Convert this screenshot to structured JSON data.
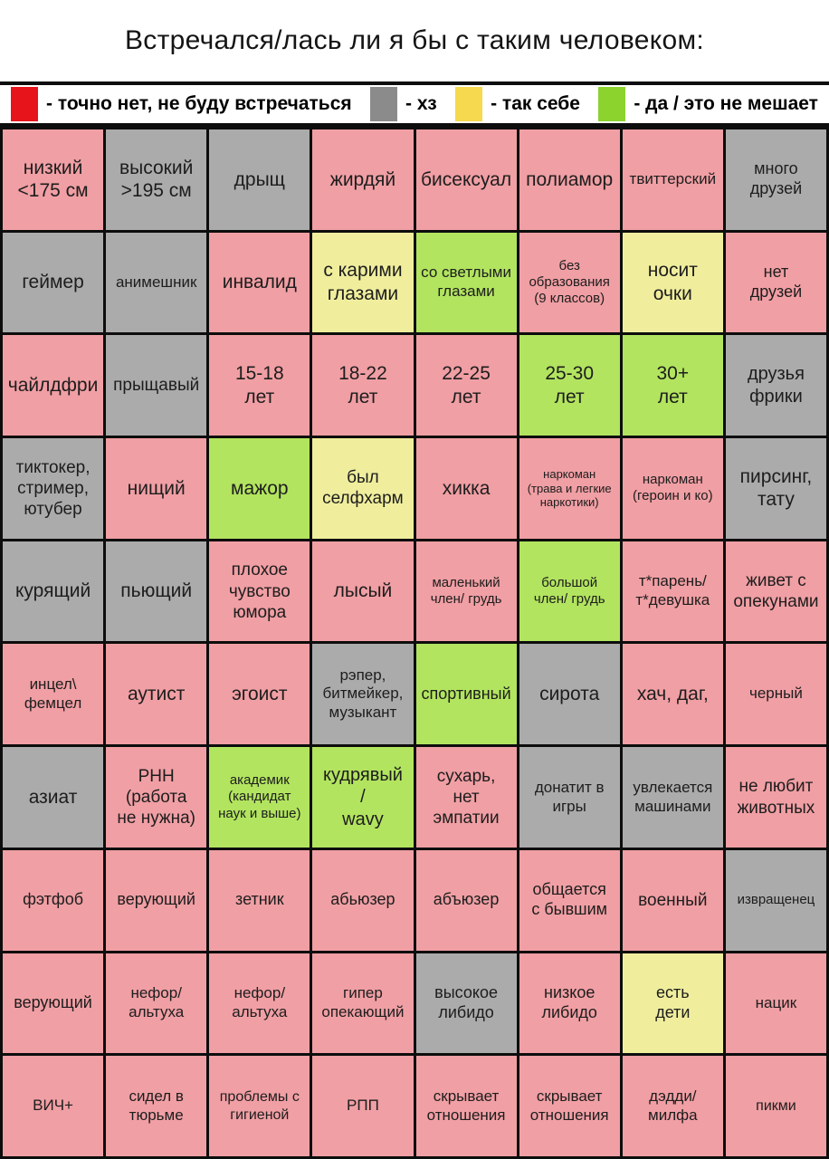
{
  "title": "Встречался/лась ли я бы с таким человеком:",
  "colors": {
    "cell": {
      "no": "#f09fa4",
      "hz": "#ababab",
      "soso": "#f0ee9d",
      "yes": "#b2e45f"
    },
    "legend": {
      "no": "#e8141b",
      "hz": "#8b8b8b",
      "soso": "#f6d94e",
      "yes": "#8cd32e"
    },
    "gridline": "#0d0d0d"
  },
  "chart_data": {
    "type": "table",
    "title": "Встречался/лась ли я бы с таким человеком:",
    "columns": 8,
    "rows_count": 10,
    "legend": [
      {
        "key": "no",
        "label": "- точно нет, не буду встречаться"
      },
      {
        "key": "hz",
        "label": "- хз"
      },
      {
        "key": "soso",
        "label": "- так себе"
      },
      {
        "key": "yes",
        "label": "- да / это не мешает"
      }
    ],
    "rows": [
      [
        {
          "text": "низкий\n<175 см",
          "status": "no",
          "fs": 21
        },
        {
          "text": "высокий\n>195 см",
          "status": "hz",
          "fs": 21
        },
        {
          "text": "дрыщ",
          "status": "hz",
          "fs": 21
        },
        {
          "text": "жирдяй",
          "status": "no",
          "fs": 21
        },
        {
          "text": "бисексуал",
          "status": "no",
          "fs": 21
        },
        {
          "text": "полиамор",
          "status": "no",
          "fs": 21
        },
        {
          "text": "твиттерский",
          "status": "no",
          "fs": 17
        },
        {
          "text": "много\nдрузей",
          "status": "hz",
          "fs": 18
        }
      ],
      [
        {
          "text": "геймер",
          "status": "hz",
          "fs": 21
        },
        {
          "text": "анимешник",
          "status": "hz",
          "fs": 17
        },
        {
          "text": "инвалид",
          "status": "no",
          "fs": 21
        },
        {
          "text": "с карими\nглазами",
          "status": "soso",
          "fs": 21
        },
        {
          "text": "со светлыми\nглазами",
          "status": "yes",
          "fs": 17
        },
        {
          "text": "без\nобразования\n(9 классов)",
          "status": "no",
          "fs": 15
        },
        {
          "text": "носит\nочки",
          "status": "soso",
          "fs": 21
        },
        {
          "text": "нет\nдрузей",
          "status": "no",
          "fs": 18
        }
      ],
      [
        {
          "text": "чайлдфри",
          "status": "no",
          "fs": 21
        },
        {
          "text": "прыщавый",
          "status": "hz",
          "fs": 19
        },
        {
          "text": "15-18\nлет",
          "status": "no",
          "fs": 21
        },
        {
          "text": "18-22\nлет",
          "status": "no",
          "fs": 21
        },
        {
          "text": "22-25\nлет",
          "status": "no",
          "fs": 21
        },
        {
          "text": "25-30\nлет",
          "status": "yes",
          "fs": 21
        },
        {
          "text": "30+\nлет",
          "status": "yes",
          "fs": 21
        },
        {
          "text": "друзья\nфрики",
          "status": "hz",
          "fs": 20
        }
      ],
      [
        {
          "text": "тиктокер,\nстример,\nютубер",
          "status": "hz",
          "fs": 19
        },
        {
          "text": "нищий",
          "status": "no",
          "fs": 21
        },
        {
          "text": "мажор",
          "status": "yes",
          "fs": 21
        },
        {
          "text": "был\nселфхарм",
          "status": "soso",
          "fs": 19
        },
        {
          "text": "хикка",
          "status": "no",
          "fs": 21
        },
        {
          "text": "наркоман\n(трава и легкие\nнаркотики)",
          "status": "no",
          "fs": 13
        },
        {
          "text": "наркоман\n(героин и ко)",
          "status": "no",
          "fs": 15
        },
        {
          "text": "пирсинг,\nтату",
          "status": "hz",
          "fs": 21
        }
      ],
      [
        {
          "text": "курящий",
          "status": "hz",
          "fs": 21
        },
        {
          "text": "пьющий",
          "status": "hz",
          "fs": 21
        },
        {
          "text": "плохое\nчувство\nюмора",
          "status": "no",
          "fs": 19
        },
        {
          "text": "лысый",
          "status": "no",
          "fs": 21
        },
        {
          "text": "маленький\nчлен/ грудь",
          "status": "no",
          "fs": 15
        },
        {
          "text": "большой\nчлен/ грудь",
          "status": "yes",
          "fs": 15
        },
        {
          "text": "т*парень/\nт*девушка",
          "status": "no",
          "fs": 17
        },
        {
          "text": "живет с\nопекунами",
          "status": "no",
          "fs": 19
        }
      ],
      [
        {
          "text": "инцел\\\nфемцел",
          "status": "no",
          "fs": 17
        },
        {
          "text": "аутист",
          "status": "no",
          "fs": 21
        },
        {
          "text": "эгоист",
          "status": "no",
          "fs": 21
        },
        {
          "text": "рэпер,\nбитмейкер,\nмузыкант",
          "status": "hz",
          "fs": 17
        },
        {
          "text": "спортивный",
          "status": "yes",
          "fs": 18
        },
        {
          "text": "сирота",
          "status": "hz",
          "fs": 21
        },
        {
          "text": "хач, даг,",
          "status": "no",
          "fs": 21
        },
        {
          "text": "черный",
          "status": "no",
          "fs": 17
        }
      ],
      [
        {
          "text": "азиат",
          "status": "hz",
          "fs": 21
        },
        {
          "text": "РНН\n(работа\nне нужна)",
          "status": "no",
          "fs": 19
        },
        {
          "text": "академик\n(кандидат\nнаук и выше)",
          "status": "yes",
          "fs": 15
        },
        {
          "text": "кудрявый\n/\nwavy",
          "status": "yes",
          "fs": 20
        },
        {
          "text": "сухарь,\nнет\nэмпатии",
          "status": "no",
          "fs": 19
        },
        {
          "text": "донатит в\nигры",
          "status": "hz",
          "fs": 17
        },
        {
          "text": "увлекается\nмашинами",
          "status": "hz",
          "fs": 17
        },
        {
          "text": "не любит\nживотных",
          "status": "no",
          "fs": 19
        }
      ],
      [
        {
          "text": "фэтфоб",
          "status": "no",
          "fs": 18
        },
        {
          "text": "верующий",
          "status": "no",
          "fs": 18
        },
        {
          "text": "зетник",
          "status": "no",
          "fs": 18
        },
        {
          "text": "абьюзер",
          "status": "no",
          "fs": 18
        },
        {
          "text": "абъюзер",
          "status": "no",
          "fs": 18
        },
        {
          "text": "общается\nс бывшим",
          "status": "no",
          "fs": 18
        },
        {
          "text": "военный",
          "status": "no",
          "fs": 19
        },
        {
          "text": "извращенец",
          "status": "hz",
          "fs": 15
        }
      ],
      [
        {
          "text": "верующий",
          "status": "no",
          "fs": 18
        },
        {
          "text": "нефор/\nальтуха",
          "status": "no",
          "fs": 17
        },
        {
          "text": "нефор/\nальтуха",
          "status": "no",
          "fs": 17
        },
        {
          "text": "гипер\nопекающий",
          "status": "no",
          "fs": 17
        },
        {
          "text": "высокое\nлибидо",
          "status": "hz",
          "fs": 18
        },
        {
          "text": "низкое\nлибидо",
          "status": "no",
          "fs": 18
        },
        {
          "text": "есть\nдети",
          "status": "soso",
          "fs": 18
        },
        {
          "text": "нацик",
          "status": "no",
          "fs": 17
        }
      ],
      [
        {
          "text": "ВИЧ+",
          "status": "no",
          "fs": 17
        },
        {
          "text": "сидел в\nтюрьме",
          "status": "no",
          "fs": 17
        },
        {
          "text": "проблемы с\nгигиеной",
          "status": "no",
          "fs": 16
        },
        {
          "text": "РПП",
          "status": "no",
          "fs": 17
        },
        {
          "text": "скрывает\nотношения",
          "status": "no",
          "fs": 17
        },
        {
          "text": "скрывает\nотношения",
          "status": "no",
          "fs": 17
        },
        {
          "text": "дэдди/\nмилфа",
          "status": "no",
          "fs": 17
        },
        {
          "text": "пикми",
          "status": "no",
          "fs": 16
        }
      ]
    ]
  }
}
